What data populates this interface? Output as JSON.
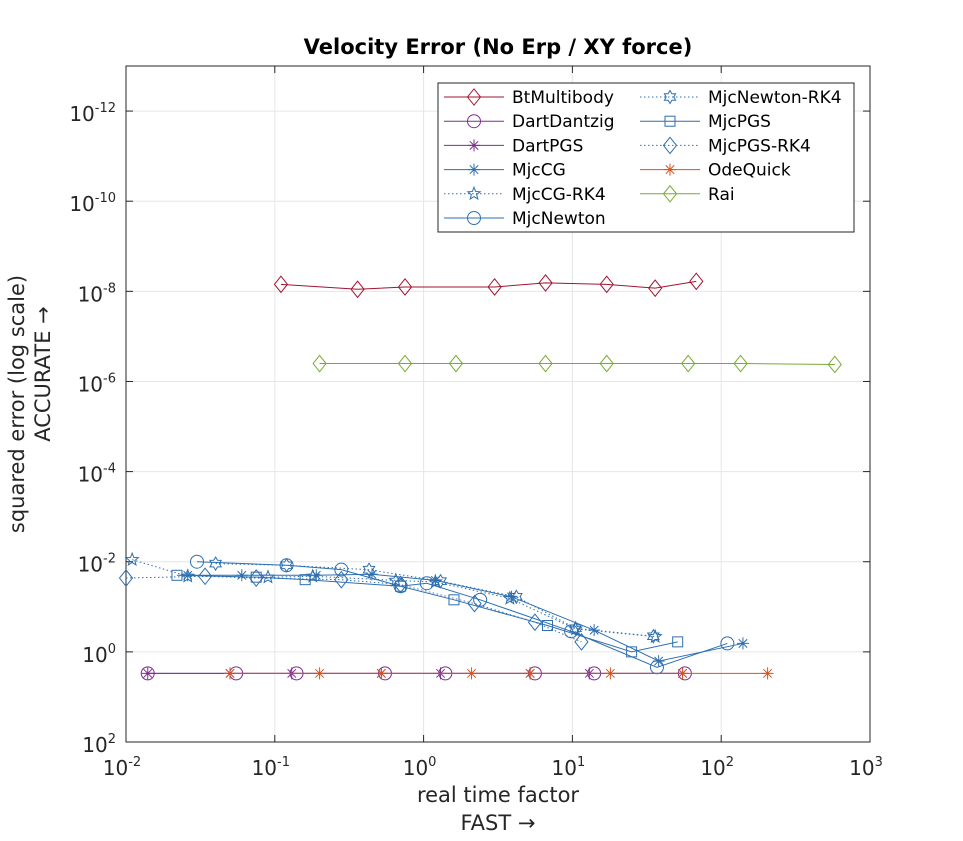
{
  "chart_data": {
    "type": "line",
    "title": "Velocity Error (No Erp / XY force)",
    "xlabel": [
      "real time factor",
      "FAST →"
    ],
    "ylabel": [
      "squared error (log scale)",
      "ACCURATE →"
    ],
    "x_scale": "log",
    "y_scale": "log",
    "y_reversed": true,
    "xlim": [
      0.01,
      1000
    ],
    "ylim": [
      100,
      1e-13
    ],
    "grid": true,
    "legend_position": "top-right",
    "legend_columns": 2,
    "x_ticks": [
      {
        "base": "10",
        "exp": "-2"
      },
      {
        "base": "10",
        "exp": "-1"
      },
      {
        "base": "10",
        "exp": "0"
      },
      {
        "base": "10",
        "exp": "1"
      },
      {
        "base": "10",
        "exp": "2"
      },
      {
        "base": "10",
        "exp": "3"
      }
    ],
    "y_ticks": [
      {
        "base": "10",
        "exp": "-12"
      },
      {
        "base": "10",
        "exp": "-10"
      },
      {
        "base": "10",
        "exp": "-8"
      },
      {
        "base": "10",
        "exp": "-6"
      },
      {
        "base": "10",
        "exp": "-4"
      },
      {
        "base": "10",
        "exp": "-2"
      },
      {
        "base": "10",
        "exp": "0"
      },
      {
        "base": "10",
        "exp": "2"
      }
    ],
    "series": [
      {
        "name": "BtMultibody",
        "color": "#a2142f",
        "marker": "diamond",
        "line": "solid",
        "x": [
          0.11,
          0.36,
          0.75,
          3.0,
          6.6,
          17,
          36,
          68
        ],
        "y": [
          7e-09,
          9e-09,
          8e-09,
          8e-09,
          6.5e-09,
          7e-09,
          8.5e-09,
          6e-09
        ]
      },
      {
        "name": "DartDantzig",
        "color": "#7e2f8e",
        "marker": "circle",
        "line": "solid",
        "x": [
          0.014,
          0.055,
          0.14,
          0.55,
          1.4,
          5.6,
          14,
          57
        ],
        "y": [
          3.0,
          3.0,
          3.0,
          3.0,
          3.0,
          3.0,
          3.0,
          3.0
        ]
      },
      {
        "name": "DartPGS",
        "color": "#7e2f8e",
        "marker": "asterisk",
        "line": "solid",
        "x": [
          0.014,
          0.05,
          0.13,
          0.52,
          1.3,
          5.2,
          13,
          55
        ],
        "y": [
          3.0,
          3.0,
          3.0,
          3.0,
          3.0,
          3.0,
          3.0,
          3.0
        ]
      },
      {
        "name": "MjcCG",
        "color": "#2e6fb0",
        "marker": "asterisk",
        "line": "solid",
        "x": [
          0.026,
          0.06,
          0.19,
          0.45,
          1.2,
          3.9,
          14,
          38,
          140
        ],
        "y": [
          0.02,
          0.02,
          0.02,
          0.019,
          0.026,
          0.06,
          0.33,
          1.6,
          0.65
        ]
      },
      {
        "name": "MjcCG-RK4",
        "color": "#2e6fb0",
        "marker": "star",
        "line": "dotted",
        "x": [
          0.011,
          0.026,
          0.09,
          0.18,
          0.65,
          1.2,
          3.8,
          10.5,
          36
        ],
        "y": [
          0.009,
          0.021,
          0.022,
          0.021,
          0.026,
          0.028,
          0.065,
          0.31,
          0.46
        ]
      },
      {
        "name": "MjcNewton",
        "color": "#2e6fb0",
        "marker": "circle",
        "line": "solid",
        "x": [
          0.03,
          0.12,
          0.28,
          0.7,
          1.05,
          2.4,
          9.8,
          37,
          110
        ],
        "y": [
          0.01,
          0.012,
          0.015,
          0.035,
          0.03,
          0.07,
          0.35,
          2.2,
          0.65
        ]
      },
      {
        "name": "MjcNewton-RK4",
        "color": "#2e6fb0",
        "marker": "hexagram",
        "line": "dotted",
        "x": [
          0.04,
          0.12,
          0.43,
          1.3,
          4.2,
          10.5,
          35
        ],
        "y": [
          0.011,
          0.012,
          0.015,
          0.027,
          0.06,
          0.3,
          0.45
        ]
      },
      {
        "name": "MjcPGS",
        "color": "#2e6fb0",
        "marker": "square",
        "line": "solid",
        "x": [
          0.022,
          0.075,
          0.16,
          0.7,
          1.6,
          6.8,
          25,
          51
        ],
        "y": [
          0.02,
          0.022,
          0.025,
          0.035,
          0.07,
          0.26,
          1.0,
          0.6
        ]
      },
      {
        "name": "MjcPGS-RK4",
        "color": "#2e6fb0",
        "marker": "diamond",
        "line": "dotted",
        "x": [
          0.01,
          0.034,
          0.075,
          0.28,
          0.7,
          2.2,
          5.6,
          11.5
        ],
        "y": [
          0.023,
          0.021,
          0.023,
          0.025,
          0.032,
          0.085,
          0.22,
          0.6
        ]
      },
      {
        "name": "OdeQuick",
        "color": "#d95319",
        "marker": "asterisk",
        "line": "solid",
        "x": [
          0.05,
          0.2,
          0.52,
          2.1,
          5.2,
          18,
          55,
          205
        ],
        "y": [
          3.0,
          3.0,
          3.0,
          3.0,
          3.0,
          3.0,
          3.0,
          3.0
        ]
      },
      {
        "name": "Rai",
        "color": "#77ac30",
        "marker": "diamond",
        "line": "solid",
        "x": [
          0.2,
          0.75,
          1.65,
          6.6,
          17,
          60,
          135,
          580
        ],
        "y": [
          4e-07,
          4e-07,
          4e-07,
          4e-07,
          4e-07,
          4e-07,
          4e-07,
          4.2e-07
        ]
      }
    ]
  }
}
